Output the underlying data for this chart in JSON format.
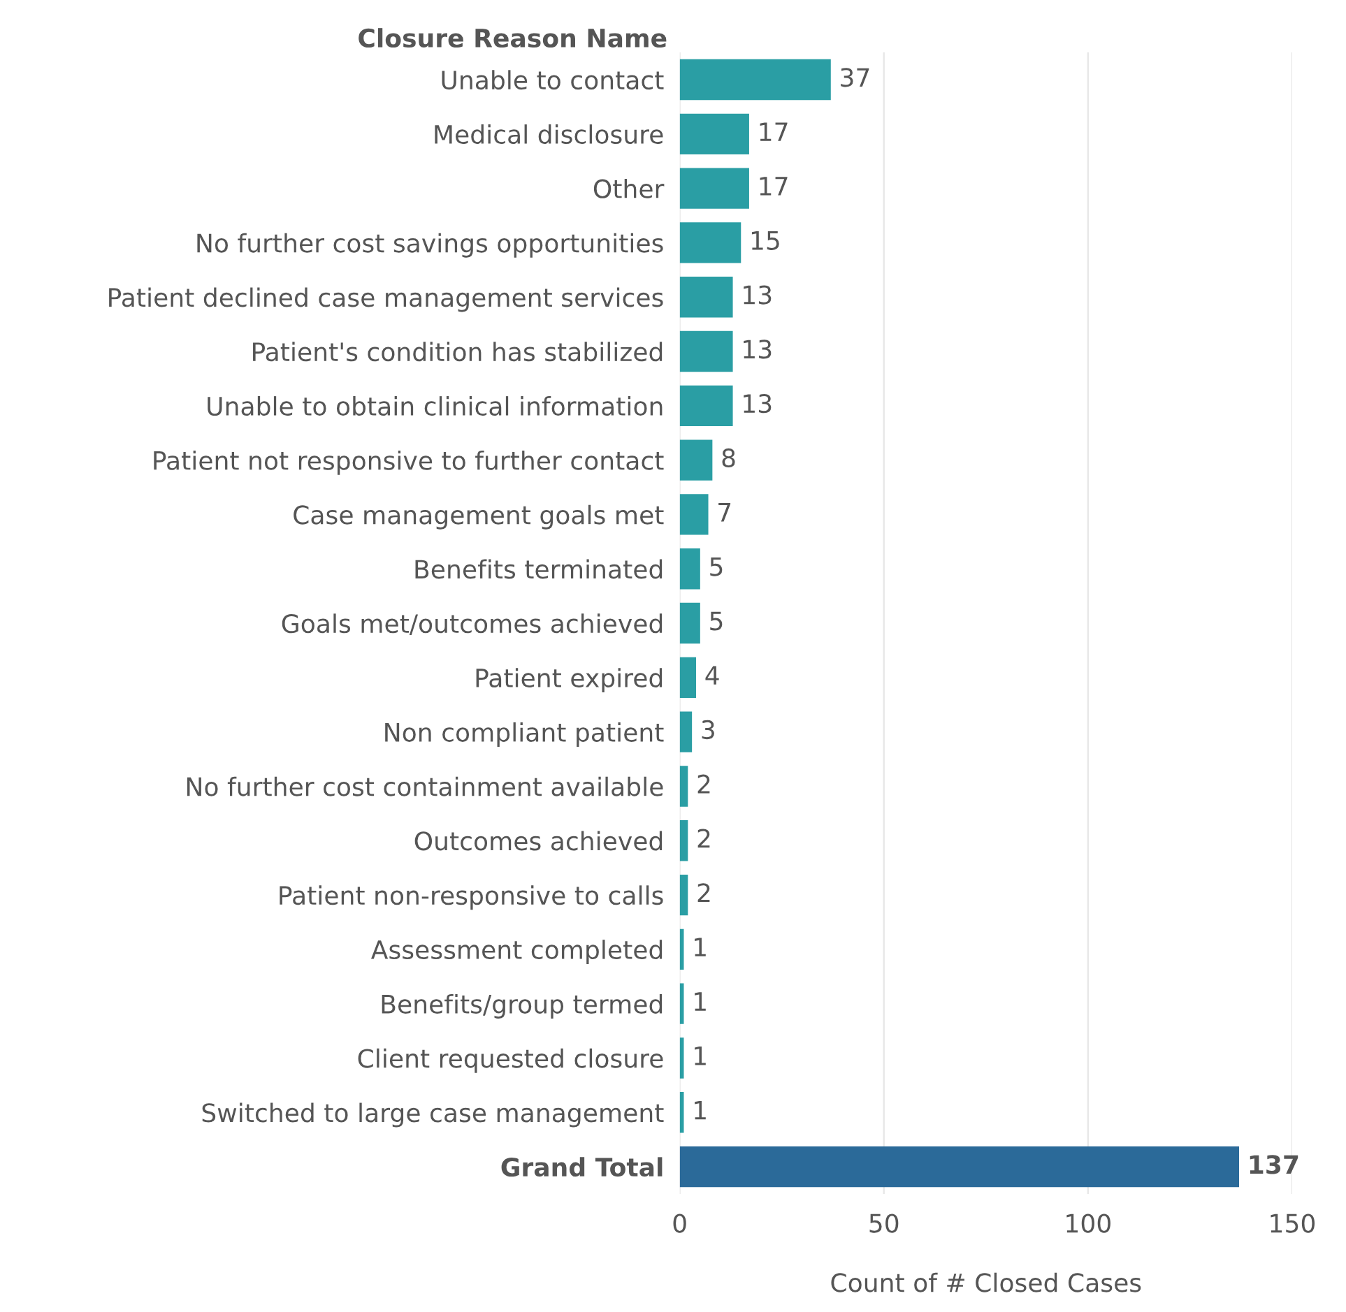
{
  "chart_data": {
    "type": "bar",
    "orientation": "horizontal",
    "ylabel": "Closure Reason Name",
    "xlabel": "Count of # Closed Cases",
    "categories": [
      "Unable to contact",
      "Medical disclosure",
      "Other",
      "No further cost savings opportunities",
      "Patient declined case management services",
      "Patient's condition has stabilized",
      "Unable to obtain clinical information",
      "Patient not responsive to further contact",
      "Case management goals met",
      "Benefits terminated",
      "Goals met/outcomes achieved",
      "Patient expired",
      "Non compliant patient",
      "No further cost containment available",
      "Outcomes achieved",
      "Patient non-responsive to calls",
      "Assessment completed",
      "Benefits/group termed",
      "Client requested closure",
      "Switched to large case management",
      "Grand Total"
    ],
    "values": [
      37,
      17,
      17,
      15,
      13,
      13,
      13,
      8,
      7,
      5,
      5,
      4,
      3,
      2,
      2,
      2,
      1,
      1,
      1,
      1,
      137
    ],
    "colors": [
      "#2a9ea4",
      "#2a9ea4",
      "#2a9ea4",
      "#2a9ea4",
      "#2a9ea4",
      "#2a9ea4",
      "#2a9ea4",
      "#2a9ea4",
      "#2a9ea4",
      "#2a9ea4",
      "#2a9ea4",
      "#2a9ea4",
      "#2a9ea4",
      "#2a9ea4",
      "#2a9ea4",
      "#2a9ea4",
      "#2a9ea4",
      "#2a9ea4",
      "#2a9ea4",
      "#2a9ea4",
      "#2b6a99"
    ],
    "xlim": [
      0,
      150
    ],
    "xticks": [
      0,
      50,
      100,
      150
    ],
    "grid": "x",
    "data_labels": true
  }
}
